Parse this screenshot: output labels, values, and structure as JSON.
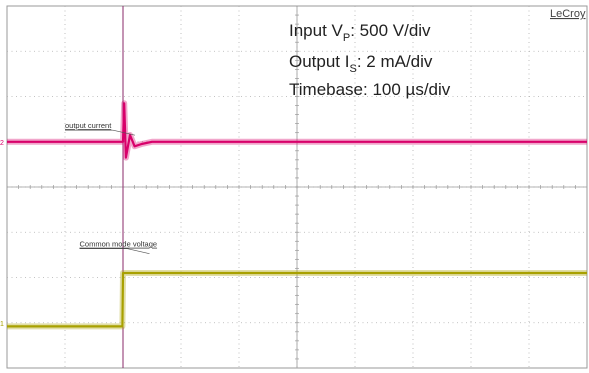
{
  "brand": "LeCroy",
  "settings": {
    "input_prefix": "Input V",
    "input_sub": "P",
    "input_suffix": ": 500 V/div",
    "output_prefix": "Output I",
    "output_sub": "S",
    "output_suffix": ": 2 mA/div",
    "timebase": "Timebase: 100 µs/div"
  },
  "colors": {
    "current_trace": "#d8006a",
    "voltage_trace": "#a8a000",
    "grid": "#b0b0b0",
    "cursor": "#8a2a6a"
  },
  "chart_data": {
    "type": "line",
    "grid_divisions": {
      "x": 10,
      "y": 8
    },
    "x_axis": {
      "unit": "div",
      "range": [
        0,
        10
      ]
    },
    "y_axis": {
      "unit": "div",
      "range": [
        0,
        8
      ]
    },
    "transient_time_div": 2.0,
    "series": [
      {
        "name": "output current",
        "channel_marker": "2",
        "marker_level_div": 5.0,
        "label_at": [
          1.0,
          5.3
        ],
        "points": [
          [
            0,
            5.0
          ],
          [
            1.95,
            5.0
          ],
          [
            2.0,
            5.0
          ],
          [
            2.02,
            5.85
          ],
          [
            2.05,
            4.65
          ],
          [
            2.12,
            5.15
          ],
          [
            2.2,
            4.9
          ],
          [
            2.32,
            4.95
          ],
          [
            2.5,
            5.0
          ],
          [
            10,
            5.0
          ]
        ]
      },
      {
        "name": "Common mode voltage",
        "channel_marker": "1",
        "marker_level_div": 1.0,
        "label_at": [
          1.25,
          2.68
        ],
        "points": [
          [
            0,
            0.92
          ],
          [
            1.99,
            0.92
          ],
          [
            2.0,
            2.1
          ],
          [
            10,
            2.1
          ]
        ]
      }
    ]
  }
}
